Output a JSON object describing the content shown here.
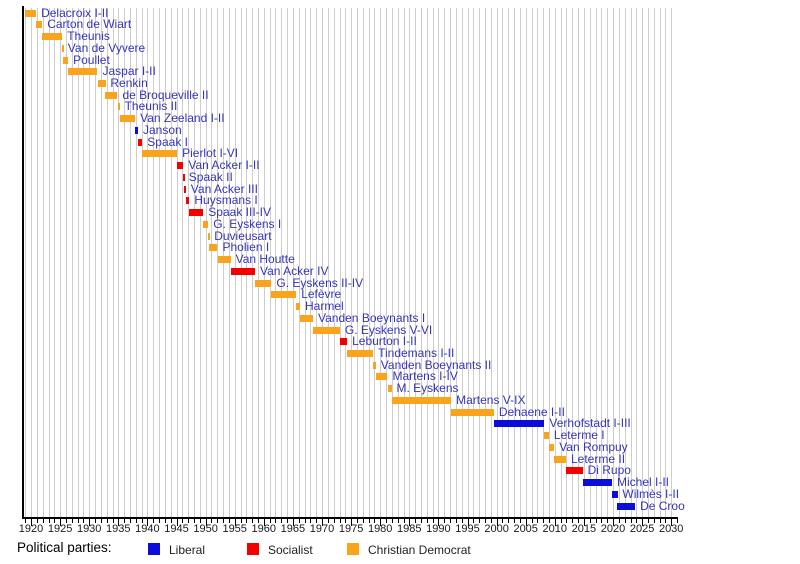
{
  "chart_data": {
    "type": "timeline",
    "title": "",
    "xlabel": "",
    "ylabel": "",
    "axis": {
      "label_start": 1920,
      "label_end": 2030,
      "label_step": 5,
      "grid_start": 1919,
      "grid_end": 2030,
      "grid_step": 1,
      "tick_start": 1919,
      "tick_end": 2031
    },
    "parties": {
      "liberal": {
        "label": "Liberal",
        "color": "#0D0DDB"
      },
      "socialist": {
        "label": "Socialist",
        "color": "#F50000"
      },
      "christian_democrat": {
        "label": "Christian Democrat",
        "color": "#F9A41C"
      }
    },
    "legend": {
      "title": "Political parties:",
      "position": "bottom",
      "items": [
        {
          "label": "Liberal",
          "party": "liberal"
        },
        {
          "label": "Socialist",
          "party": "socialist"
        },
        {
          "label": "Christian Democrat",
          "party": "christian_democrat"
        }
      ]
    },
    "bars": [
      {
        "label": "Delacroix I-II",
        "start": 1918.88,
        "end": 1920.87,
        "party": "christian_democrat"
      },
      {
        "label": "Carton de Wiart",
        "start": 1920.87,
        "end": 1921.93,
        "party": "christian_democrat"
      },
      {
        "label": "Theunis",
        "start": 1921.93,
        "end": 1925.36,
        "party": "christian_democrat"
      },
      {
        "label": "Van de Vyvere",
        "start": 1925.36,
        "end": 1925.46,
        "party": "christian_democrat"
      },
      {
        "label": "Poullet",
        "start": 1925.46,
        "end": 1926.38,
        "party": "christian_democrat"
      },
      {
        "label": "Jaspar I-II",
        "start": 1926.38,
        "end": 1931.42,
        "party": "christian_democrat"
      },
      {
        "label": "Renkin",
        "start": 1931.42,
        "end": 1932.79,
        "party": "christian_democrat"
      },
      {
        "label": "de Broqueville II",
        "start": 1932.79,
        "end": 1934.87,
        "party": "christian_democrat"
      },
      {
        "label": "Theunis II",
        "start": 1934.87,
        "end": 1935.22,
        "party": "christian_democrat"
      },
      {
        "label": "Van Zeeland I-II",
        "start": 1935.22,
        "end": 1937.88,
        "party": "christian_democrat"
      },
      {
        "label": "Janson",
        "start": 1937.88,
        "end": 1938.38,
        "party": "liberal"
      },
      {
        "label": "Spaak I",
        "start": 1938.38,
        "end": 1939.13,
        "party": "socialist"
      },
      {
        "label": "Pierlot I-VI",
        "start": 1939.13,
        "end": 1945.1,
        "party": "christian_democrat"
      },
      {
        "label": "Van Acker I-II",
        "start": 1945.1,
        "end": 1946.19,
        "party": "socialist"
      },
      {
        "label": "Spaak II",
        "start": 1946.19,
        "end": 1946.26,
        "party": "socialist"
      },
      {
        "label": "Van Acker III",
        "start": 1946.26,
        "end": 1946.6,
        "party": "socialist"
      },
      {
        "label": "Huysmans I",
        "start": 1946.6,
        "end": 1947.21,
        "party": "socialist"
      },
      {
        "label": "Spaak III-IV",
        "start": 1947.21,
        "end": 1949.61,
        "party": "socialist"
      },
      {
        "label": "G. Eyskens I",
        "start": 1949.61,
        "end": 1950.44,
        "party": "christian_democrat"
      },
      {
        "label": "Duvieusart",
        "start": 1950.44,
        "end": 1950.61,
        "party": "christian_democrat"
      },
      {
        "label": "Pholien I",
        "start": 1950.61,
        "end": 1952.04,
        "party": "christian_democrat"
      },
      {
        "label": "Van Houtte",
        "start": 1952.04,
        "end": 1954.3,
        "party": "christian_democrat"
      },
      {
        "label": "Van Acker IV",
        "start": 1954.3,
        "end": 1958.49,
        "party": "socialist"
      },
      {
        "label": "G. Eyskens II-IV",
        "start": 1958.49,
        "end": 1961.3,
        "party": "christian_democrat"
      },
      {
        "label": "Lefèvre",
        "start": 1961.3,
        "end": 1965.57,
        "party": "christian_democrat"
      },
      {
        "label": "Harmel",
        "start": 1965.57,
        "end": 1966.22,
        "party": "christian_democrat"
      },
      {
        "label": "Vanden Boeynants I",
        "start": 1966.22,
        "end": 1968.46,
        "party": "christian_democrat"
      },
      {
        "label": "G. Eyskens V-VI",
        "start": 1968.46,
        "end": 1973.07,
        "party": "christian_democrat"
      },
      {
        "label": "Leburton I-II",
        "start": 1973.07,
        "end": 1974.32,
        "party": "socialist"
      },
      {
        "label": "Tindemans I-II",
        "start": 1974.32,
        "end": 1978.78,
        "party": "christian_democrat"
      },
      {
        "label": "Vanden Boeynants II",
        "start": 1978.78,
        "end": 1979.25,
        "party": "christian_democrat"
      },
      {
        "label": "Martens I-IV",
        "start": 1979.25,
        "end": 1981.26,
        "party": "christian_democrat"
      },
      {
        "label": "M. Eyskens",
        "start": 1981.26,
        "end": 1981.95,
        "party": "christian_democrat"
      },
      {
        "label": "Martens V-IX",
        "start": 1981.95,
        "end": 1992.19,
        "party": "christian_democrat"
      },
      {
        "label": "Dehaene I-II",
        "start": 1992.19,
        "end": 1999.54,
        "party": "christian_democrat"
      },
      {
        "label": "Verhofstadt I-III",
        "start": 1999.54,
        "end": 2008.21,
        "party": "liberal"
      },
      {
        "label": "Leterme I",
        "start": 2008.21,
        "end": 2008.98,
        "party": "christian_democrat"
      },
      {
        "label": "Van Rompuy",
        "start": 2008.98,
        "end": 2009.9,
        "party": "christian_democrat"
      },
      {
        "label": "Leterme II",
        "start": 2009.9,
        "end": 2011.93,
        "party": "christian_democrat"
      },
      {
        "label": "Di Rupo",
        "start": 2011.93,
        "end": 2014.78,
        "party": "socialist"
      },
      {
        "label": "Michel I-II",
        "start": 2014.78,
        "end": 2019.82,
        "party": "liberal"
      },
      {
        "label": "Wilmès I-II",
        "start": 2019.82,
        "end": 2020.76,
        "party": "liberal"
      },
      {
        "label": "De Croo",
        "start": 2020.76,
        "end": 2023.8,
        "party": "liberal"
      }
    ]
  }
}
